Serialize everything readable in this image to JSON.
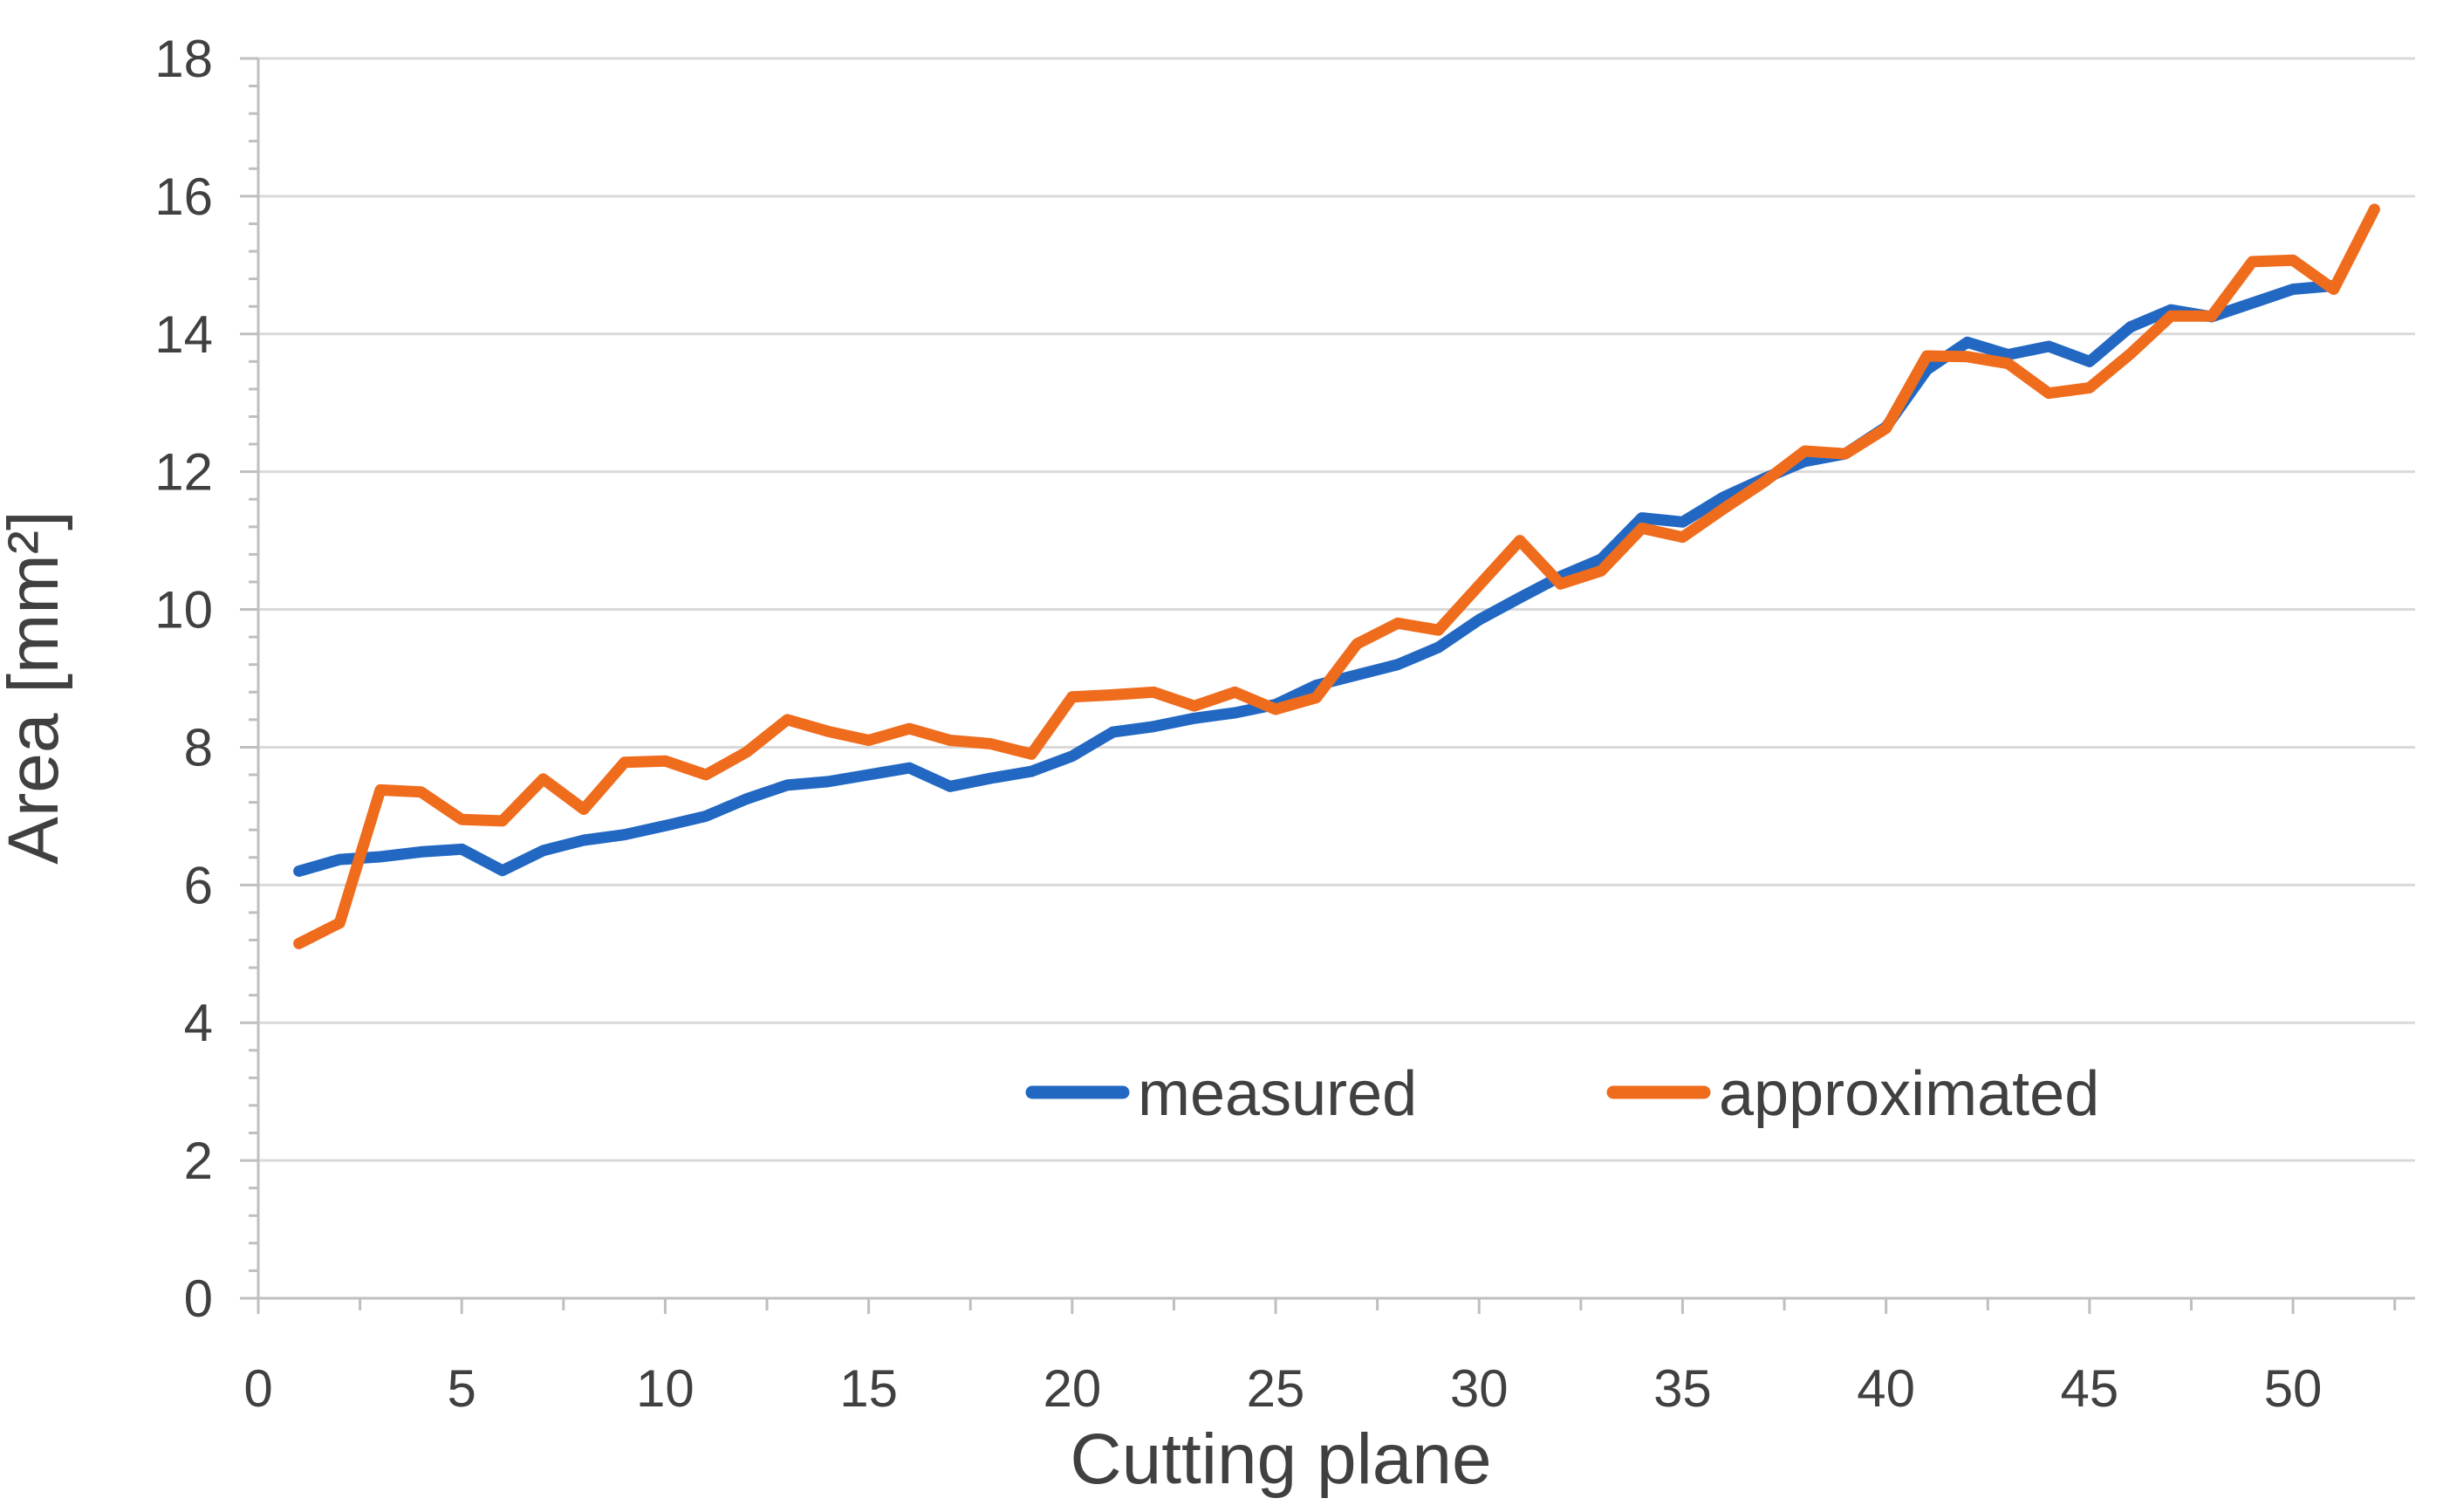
{
  "chart_data": {
    "type": "line",
    "title": "",
    "xlabel": "Cutting plane",
    "ylabel": "Area [mm²]",
    "xlim": [
      0,
      53
    ],
    "ylim": [
      0,
      18
    ],
    "x_ticks": [
      0,
      5,
      10,
      15,
      20,
      25,
      30,
      35,
      40,
      45,
      50
    ],
    "y_ticks": [
      0,
      2,
      4,
      6,
      8,
      10,
      12,
      14,
      16,
      18
    ],
    "x_minor_step": 2.5,
    "y_minor_step": 0.4,
    "grid": "horizontal-major",
    "legend_position": "bottom-center",
    "x_start": 1,
    "series": [
      {
        "name": "measured",
        "color": "#2268c3",
        "values": [
          6.2,
          6.37,
          6.41,
          6.48,
          6.52,
          6.21,
          6.5,
          6.65,
          6.73,
          6.86,
          7.0,
          7.25,
          7.45,
          7.5,
          7.6,
          7.7,
          7.43,
          7.55,
          7.65,
          7.87,
          8.22,
          8.3,
          8.42,
          8.5,
          8.62,
          8.9,
          9.05,
          9.2,
          9.45,
          9.85,
          10.17,
          10.48,
          10.73,
          11.33,
          11.27,
          11.63,
          11.9,
          12.15,
          12.26,
          12.65,
          13.48,
          13.88,
          13.7,
          13.82,
          13.6,
          14.1,
          14.35,
          14.25,
          14.45,
          14.65,
          14.7
        ]
      },
      {
        "name": "approximated",
        "color": "#ef6c1d",
        "values": [
          5.15,
          5.45,
          7.38,
          7.35,
          6.95,
          6.93,
          7.54,
          7.1,
          7.78,
          7.8,
          7.6,
          7.93,
          8.4,
          8.23,
          8.1,
          8.27,
          8.1,
          8.05,
          7.9,
          8.73,
          8.76,
          8.8,
          8.6,
          8.8,
          8.55,
          8.72,
          9.5,
          9.8,
          9.7,
          10.35,
          11.0,
          10.37,
          10.56,
          11.18,
          11.05,
          11.46,
          11.85,
          12.3,
          12.26,
          12.63,
          13.68,
          13.67,
          13.57,
          13.14,
          13.22,
          13.71,
          14.26,
          14.26,
          15.05,
          15.07,
          14.65,
          15.81
        ]
      }
    ],
    "text_color": "#404040",
    "gridline_color": "#d9d9d9",
    "axis_color": "#bfbfbf",
    "background": "#ffffff"
  }
}
